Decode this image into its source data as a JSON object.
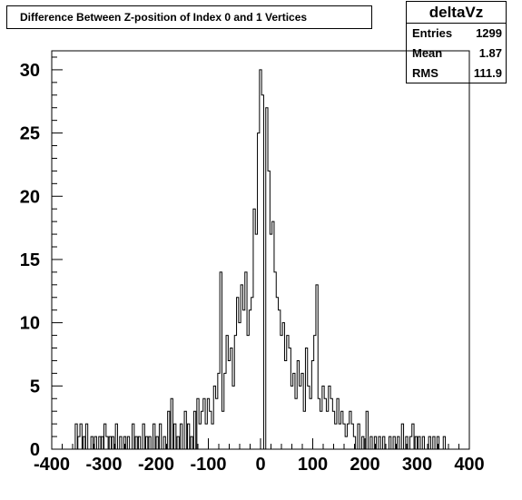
{
  "title": "Difference Between Z-position of Index 0 and 1 Vertices",
  "stats": {
    "name": "deltaVz",
    "rows": [
      {
        "label": "Entries",
        "value": "1299"
      },
      {
        "label": "Mean",
        "value": "1.87"
      },
      {
        "label": "RMS",
        "value": "111.9"
      }
    ]
  },
  "chart_data": {
    "type": "bar",
    "xlim": [
      -400,
      400
    ],
    "ylim": [
      0,
      31.5
    ],
    "xticks": [
      -400,
      -300,
      -200,
      -100,
      0,
      100,
      200,
      300,
      400
    ],
    "yticks": [
      0,
      5,
      10,
      15,
      20,
      25,
      30
    ],
    "bin_width": 4,
    "title": "Difference Between Z-position of Index 0 and 1 Vertices",
    "xlabel": "",
    "ylabel": "",
    "bins": [
      [
        -355,
        2
      ],
      [
        -350,
        1
      ],
      [
        -346,
        2
      ],
      [
        -340,
        1
      ],
      [
        -335,
        2
      ],
      [
        -325,
        1
      ],
      [
        -318,
        1
      ],
      [
        -310,
        1
      ],
      [
        -305,
        1
      ],
      [
        -300,
        2
      ],
      [
        -296,
        1
      ],
      [
        -290,
        1
      ],
      [
        -285,
        1
      ],
      [
        -278,
        2
      ],
      [
        -270,
        1
      ],
      [
        -262,
        1
      ],
      [
        -255,
        1
      ],
      [
        -246,
        2
      ],
      [
        -240,
        1
      ],
      [
        -234,
        1
      ],
      [
        -226,
        2
      ],
      [
        -220,
        1
      ],
      [
        -214,
        1
      ],
      [
        -206,
        2
      ],
      [
        -200,
        1
      ],
      [
        -194,
        2
      ],
      [
        -186,
        1
      ],
      [
        -178,
        3
      ],
      [
        -172,
        4
      ],
      [
        -166,
        2
      ],
      [
        -160,
        1
      ],
      [
        -154,
        2
      ],
      [
        -146,
        3
      ],
      [
        -140,
        2
      ],
      [
        -134,
        1
      ],
      [
        -128,
        3
      ],
      [
        -122,
        4
      ],
      [
        -118,
        2
      ],
      [
        -114,
        3
      ],
      [
        -110,
        4
      ],
      [
        -106,
        2
      ],
      [
        -102,
        4
      ],
      [
        -98,
        3
      ],
      [
        -94,
        2
      ],
      [
        -90,
        5
      ],
      [
        -86,
        4
      ],
      [
        -82,
        6
      ],
      [
        -78,
        14
      ],
      [
        -74,
        3
      ],
      [
        -70,
        6
      ],
      [
        -66,
        9
      ],
      [
        -62,
        7
      ],
      [
        -58,
        8
      ],
      [
        -54,
        5
      ],
      [
        -50,
        9
      ],
      [
        -46,
        12
      ],
      [
        -42,
        10
      ],
      [
        -38,
        13
      ],
      [
        -34,
        11
      ],
      [
        -30,
        14
      ],
      [
        -26,
        9
      ],
      [
        -22,
        11
      ],
      [
        -18,
        12
      ],
      [
        -14,
        19
      ],
      [
        -10,
        17
      ],
      [
        -6,
        25
      ],
      [
        -2,
        30
      ],
      [
        2,
        28
      ],
      [
        6,
        0
      ],
      [
        10,
        27
      ],
      [
        14,
        22
      ],
      [
        18,
        17
      ],
      [
        22,
        18
      ],
      [
        26,
        14
      ],
      [
        30,
        12
      ],
      [
        34,
        11
      ],
      [
        38,
        9
      ],
      [
        42,
        10
      ],
      [
        46,
        7
      ],
      [
        50,
        9
      ],
      [
        54,
        8
      ],
      [
        58,
        5
      ],
      [
        62,
        6
      ],
      [
        66,
        4
      ],
      [
        70,
        7
      ],
      [
        74,
        5
      ],
      [
        78,
        6
      ],
      [
        82,
        3
      ],
      [
        86,
        8
      ],
      [
        90,
        5
      ],
      [
        94,
        4
      ],
      [
        98,
        7
      ],
      [
        102,
        9
      ],
      [
        106,
        13
      ],
      [
        110,
        4
      ],
      [
        114,
        3
      ],
      [
        118,
        5
      ],
      [
        122,
        4
      ],
      [
        126,
        3
      ],
      [
        130,
        5
      ],
      [
        134,
        4
      ],
      [
        138,
        3
      ],
      [
        142,
        2
      ],
      [
        146,
        4
      ],
      [
        150,
        2
      ],
      [
        154,
        3
      ],
      [
        158,
        2
      ],
      [
        162,
        1
      ],
      [
        166,
        2
      ],
      [
        170,
        3
      ],
      [
        174,
        2
      ],
      [
        178,
        1
      ],
      [
        186,
        2
      ],
      [
        194,
        1
      ],
      [
        202,
        3
      ],
      [
        210,
        1
      ],
      [
        218,
        1
      ],
      [
        226,
        1
      ],
      [
        234,
        1
      ],
      [
        246,
        1
      ],
      [
        254,
        1
      ],
      [
        262,
        1
      ],
      [
        270,
        2
      ],
      [
        278,
        1
      ],
      [
        286,
        1
      ],
      [
        290,
        2
      ],
      [
        296,
        1
      ],
      [
        302,
        1
      ],
      [
        310,
        1
      ],
      [
        322,
        1
      ],
      [
        330,
        1
      ],
      [
        338,
        1
      ],
      [
        350,
        1
      ]
    ]
  }
}
